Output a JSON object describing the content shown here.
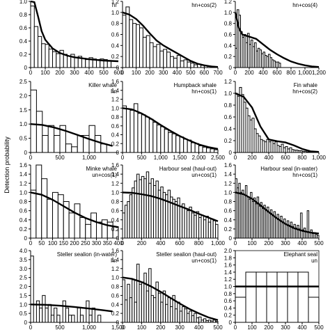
{
  "figure": {
    "ylabel": "Detection probability"
  },
  "chart_data": [
    {
      "type": "bar",
      "name": "",
      "model": "hr",
      "xlim": [
        0,
        600
      ],
      "ylim": [
        0,
        1.0
      ],
      "xticks": [
        0,
        100,
        200,
        300,
        400,
        500,
        600
      ],
      "xtick_labels": [
        "0",
        "100",
        "200",
        "300",
        "400",
        "500",
        "600"
      ],
      "yticks": [
        0,
        0.2,
        0.4,
        0.6,
        0.8,
        1.0
      ],
      "ytick_labels": [
        "0",
        "0.2",
        "0.4",
        "0.6",
        "0.8",
        "1.0"
      ],
      "bin_width": 25,
      "bars": [
        0.93,
        0.62,
        0.47,
        0.36,
        0.35,
        0.28,
        0.24,
        0.21,
        0.26,
        0.2,
        0.17,
        0.2,
        0.15,
        0.17,
        0.14,
        0.12,
        0.15,
        0.13,
        0.12,
        0.13,
        0.12,
        0.1
      ],
      "curve_x": [
        0,
        25,
        50,
        75,
        100,
        150,
        200,
        250,
        300,
        350,
        400,
        450,
        500,
        550,
        600
      ],
      "curve_y": [
        1.0,
        0.99,
        0.78,
        0.55,
        0.42,
        0.29,
        0.22,
        0.18,
        0.155,
        0.14,
        0.125,
        0.115,
        0.105,
        0.1,
        0.095
      ]
    },
    {
      "type": "bar",
      "name": "",
      "model": "hn+cos(2)",
      "xlim": [
        0,
        700
      ],
      "ylim": [
        0,
        1.2
      ],
      "xticks": [
        0,
        100,
        200,
        300,
        400,
        500,
        600,
        700
      ],
      "xtick_labels": [
        "0",
        "100",
        "200",
        "300",
        "400",
        "500",
        "600",
        "700"
      ],
      "yticks": [
        0,
        0.2,
        0.4,
        0.6,
        0.8,
        1.0,
        1.2
      ],
      "ytick_labels": [
        "0",
        "0.2",
        "0.4",
        "0.6",
        "0.8",
        "1.0",
        "1.2"
      ],
      "bin_width": 25,
      "bars": [
        0.95,
        1.1,
        0.87,
        0.8,
        0.78,
        0.72,
        0.55,
        0.58,
        0.45,
        0.38,
        0.42,
        0.3,
        0.33,
        0.28,
        0.2,
        0.17,
        0.22,
        0.12,
        0.14,
        0.1,
        0.08,
        0.05,
        0.06,
        0.04,
        0.03,
        0.03,
        0.02
      ],
      "curve_x": [
        0,
        50,
        100,
        150,
        200,
        250,
        300,
        350,
        400,
        450,
        500,
        550,
        600,
        650,
        700
      ],
      "curve_y": [
        1.0,
        0.96,
        0.88,
        0.76,
        0.62,
        0.49,
        0.4,
        0.33,
        0.26,
        0.19,
        0.12,
        0.07,
        0.04,
        0.02,
        0.01
      ]
    },
    {
      "type": "bar",
      "name": "",
      "model": "hn+cos(4)",
      "xlim": [
        0,
        1200
      ],
      "ylim": [
        0,
        1.2
      ],
      "xticks": [
        0,
        200,
        400,
        600,
        800,
        1000,
        1200
      ],
      "xtick_labels": [
        "0",
        "200",
        "400",
        "600",
        "800",
        "1,000",
        "1,200"
      ],
      "yticks": [
        0,
        0.2,
        0.4,
        0.6,
        0.8,
        1.0,
        1.2
      ],
      "ytick_labels": [
        "0",
        "0.2",
        "0.4",
        "0.6",
        "0.8",
        "1.0",
        "1.2"
      ],
      "bin_width": 25,
      "bars": [
        0.35,
        1.05,
        0.95,
        0.65,
        0.55,
        0.6,
        0.45,
        0.62,
        0.42,
        0.5,
        0.38,
        0.45,
        0.3,
        0.35,
        0.32,
        0.25,
        0.28,
        0.22,
        0.2,
        0.24,
        0.18,
        0.14,
        0.12,
        0.1,
        0.1,
        0.08
      ],
      "curve_x": [
        0,
        50,
        100,
        200,
        300,
        400,
        500,
        600,
        700,
        800,
        900,
        1000,
        1100,
        1200
      ],
      "curve_y": [
        1.0,
        0.72,
        0.6,
        0.56,
        0.52,
        0.42,
        0.32,
        0.24,
        0.17,
        0.11,
        0.07,
        0.04,
        0.02,
        0.01
      ]
    },
    {
      "type": "bar",
      "name": "Killer whale",
      "model": "hn",
      "xlim": [
        0,
        1500
      ],
      "ylim": [
        0,
        2.5
      ],
      "xticks": [
        0,
        500,
        1000
      ],
      "xtick_labels": [
        "0",
        "500",
        "1,000"
      ],
      "yticks": [
        0,
        0.5,
        1.0,
        1.5,
        2.0,
        2.5
      ],
      "ytick_labels": [
        "0",
        "0.5",
        "1.0",
        "1.5",
        "2.0",
        "2.5"
      ],
      "bin_width": 100,
      "bars": [
        2.2,
        1.45,
        0.6,
        0.95,
        0.6,
        0.95,
        0.3,
        0.2,
        0.6,
        0.6,
        0.95,
        0.6,
        0.3,
        0.0,
        0.0
      ],
      "curve_x": [
        0,
        200,
        400,
        600,
        800,
        1000,
        1200,
        1400
      ],
      "curve_y": [
        1.0,
        0.97,
        0.88,
        0.76,
        0.62,
        0.47,
        0.34,
        0.23
      ]
    },
    {
      "type": "bar",
      "name": "Humpback whale",
      "model": "hn+cos(1)",
      "xlim": [
        0,
        2500
      ],
      "ylim": [
        0,
        1.6
      ],
      "xticks": [
        0,
        500,
        1000,
        1500,
        2000,
        2500
      ],
      "xtick_labels": [
        "0",
        "500",
        "1,000",
        "1,500",
        "2,000",
        "2,500"
      ],
      "yticks": [
        0,
        0.2,
        0.4,
        0.6,
        0.8,
        1.0,
        1.2,
        1.4,
        1.6
      ],
      "ytick_labels": [
        "0",
        "0.2",
        "0.4",
        "0.6",
        "0.8",
        "1.0",
        "1.2",
        "1.4",
        "1.6"
      ],
      "bin_width": 100,
      "bars": [
        1.05,
        0.98,
        0.95,
        1.1,
        0.88,
        0.85,
        0.8,
        0.75,
        0.68,
        0.62,
        0.58,
        0.52,
        0.45,
        0.42,
        0.38,
        0.35,
        0.3,
        0.28,
        0.22,
        0.2,
        0.15,
        0.12,
        0.1,
        0.08,
        0.06
      ],
      "curve_x": [
        0,
        250,
        500,
        750,
        1000,
        1250,
        1500,
        1750,
        2000,
        2250,
        2500
      ],
      "curve_y": [
        1.0,
        0.97,
        0.88,
        0.76,
        0.62,
        0.49,
        0.37,
        0.27,
        0.18,
        0.12,
        0.08
      ]
    },
    {
      "type": "bar",
      "name": "Fin whale",
      "model": "hn+cos(2)",
      "xlim": [
        0,
        1000
      ],
      "ylim": [
        0,
        1.2
      ],
      "xticks": [
        0,
        200,
        400,
        600,
        800,
        1000
      ],
      "xtick_labels": [
        "0",
        "200",
        "400",
        "600",
        "800",
        "1,000"
      ],
      "yticks": [
        0,
        0.2,
        0.4,
        0.6,
        0.8,
        1.0,
        1.2
      ],
      "ytick_labels": [
        "0",
        "0.2",
        "0.4",
        "0.6",
        "0.8",
        "1.0",
        "1.2"
      ],
      "bin_width": 25,
      "bars": [
        1.0,
        0.95,
        1.1,
        0.98,
        0.85,
        0.75,
        0.62,
        0.55,
        0.58,
        0.4,
        0.32,
        0.28,
        0.22,
        0.2,
        0.18,
        0.22,
        0.18,
        0.2,
        0.15,
        0.18,
        0.12,
        0.1,
        0.14,
        0.08,
        0.1,
        0.06,
        0.08,
        0.05,
        0.04,
        0.04,
        0.03,
        0.03,
        0.02,
        0.02,
        0.01,
        0.01,
        0.01,
        0.01,
        0.0,
        0.0
      ],
      "curve_x": [
        0,
        100,
        200,
        300,
        400,
        500,
        600,
        700,
        800,
        900,
        1000
      ],
      "curve_y": [
        1.0,
        0.94,
        0.76,
        0.44,
        0.22,
        0.19,
        0.17,
        0.12,
        0.06,
        0.02,
        0.01
      ]
    },
    {
      "type": "bar",
      "name": "Minke whale",
      "model": "un+cos(1)",
      "xlim": [
        0,
        400
      ],
      "ylim": [
        0,
        1.6
      ],
      "xticks": [
        0,
        50,
        100,
        150,
        200,
        250,
        300,
        350,
        400
      ],
      "xtick_labels": [
        "0",
        "50",
        "100",
        "150",
        "200",
        "250",
        "300",
        "350",
        "400"
      ],
      "yticks": [
        0,
        0.2,
        0.4,
        0.6,
        0.8,
        1.0,
        1.2,
        1.4,
        1.6
      ],
      "ytick_labels": [
        "0",
        "0.2",
        "0.4",
        "0.6",
        "0.8",
        "1.0",
        "1.2",
        "1.4",
        "1.6"
      ],
      "bin_width": 25,
      "bars": [
        1.05,
        1.6,
        1.3,
        0.85,
        1.0,
        0.95,
        0.8,
        0.55,
        0.75,
        0.45,
        0.3,
        0.55,
        0.35,
        0.4,
        0.35,
        0.25
      ],
      "curve_x": [
        0,
        50,
        100,
        150,
        200,
        250,
        300,
        350,
        400
      ],
      "curve_y": [
        1.0,
        0.95,
        0.84,
        0.7,
        0.56,
        0.44,
        0.35,
        0.28,
        0.24
      ]
    },
    {
      "type": "bar",
      "name": "Harbour seal (haul-out)",
      "model": "un+cos(1)",
      "xlim": [
        0,
        1000
      ],
      "ylim": [
        0,
        1.6
      ],
      "xticks": [
        0,
        200,
        400,
        600,
        800,
        1000
      ],
      "xtick_labels": [
        "0",
        "200",
        "400",
        "600",
        "800",
        "1,000"
      ],
      "yticks": [
        0,
        0.2,
        0.4,
        0.6,
        0.8,
        1.0,
        1.2,
        1.4,
        1.6
      ],
      "ytick_labels": [
        "0",
        "0.2",
        "0.4",
        "0.6",
        "0.8",
        "1.0",
        "1.2",
        "1.4",
        "1.6"
      ],
      "bin_width": 25,
      "bars": [
        0.55,
        0.72,
        0.8,
        0.95,
        1.1,
        1.25,
        1.4,
        1.28,
        1.35,
        1.3,
        1.45,
        1.2,
        1.3,
        1.15,
        1.25,
        1.05,
        1.12,
        1.0,
        0.95,
        1.05,
        0.9,
        0.85,
        0.8,
        0.88,
        0.7,
        0.75,
        0.65,
        0.6,
        0.68,
        0.55,
        0.5,
        0.58,
        0.45,
        0.5,
        0.4,
        0.48,
        0.35,
        0.42,
        0.38,
        0.3
      ],
      "curve_x": [
        0,
        100,
        200,
        300,
        400,
        500,
        600,
        700,
        800,
        900,
        1000
      ],
      "curve_y": [
        1.0,
        0.99,
        0.96,
        0.92,
        0.86,
        0.78,
        0.7,
        0.62,
        0.53,
        0.45,
        0.37
      ]
    },
    {
      "type": "bar",
      "name": "Harbour seal (in-water)",
      "model": "hn+cos(1)",
      "xlim": [
        0,
        500
      ],
      "ylim": [
        0,
        1.6
      ],
      "xticks": [
        0,
        100,
        200,
        300,
        400,
        500
      ],
      "xtick_labels": [
        "0",
        "100",
        "200",
        "300",
        "400",
        "500"
      ],
      "yticks": [
        0,
        0.2,
        0.4,
        0.6,
        0.8,
        1.0,
        1.2,
        1.4,
        1.6
      ],
      "ytick_labels": [
        "0",
        "0.2",
        "0.4",
        "0.6",
        "0.8",
        "1.0",
        "1.2",
        "1.4",
        "1.6"
      ],
      "bin_width": 10,
      "bars": [
        1.3,
        1.1,
        1.2,
        1.0,
        1.05,
        0.95,
        1.15,
        0.9,
        0.85,
        1.0,
        0.8,
        0.88,
        0.75,
        0.9,
        0.7,
        0.78,
        0.65,
        0.72,
        0.6,
        0.68,
        0.55,
        0.62,
        0.5,
        0.58,
        0.45,
        0.52,
        0.4,
        0.48,
        0.35,
        0.42,
        0.3,
        0.38,
        0.28,
        0.35,
        0.25,
        0.3,
        0.22,
        0.28,
        0.2,
        0.55,
        0.18,
        0.22,
        0.15,
        0.6,
        0.12,
        0.18,
        0.1,
        0.12,
        0.08,
        0.06
      ],
      "curve_x": [
        0,
        50,
        100,
        150,
        200,
        250,
        300,
        350,
        400,
        450,
        500
      ],
      "curve_y": [
        1.0,
        0.96,
        0.86,
        0.72,
        0.57,
        0.43,
        0.31,
        0.22,
        0.16,
        0.12,
        0.1
      ]
    },
    {
      "type": "bar",
      "name": "Steller sealion (in-water)",
      "model": "hn",
      "xlim": [
        0,
        1500
      ],
      "ylim": [
        0,
        4.0
      ],
      "xticks": [
        0,
        500,
        1000,
        1500
      ],
      "xtick_labels": [
        "0",
        "500",
        "1,000",
        "1,500"
      ],
      "yticks": [
        0,
        0.5,
        1.0,
        1.5,
        2.0,
        2.5,
        3.0,
        3.5,
        4.0
      ],
      "ytick_labels": [
        "0",
        "0.5",
        "1.0",
        "1.5",
        "2.0",
        "2.5",
        "3.0",
        "3.5",
        "4.0"
      ],
      "bin_width": 50,
      "bars": [
        3.7,
        0.0,
        1.2,
        0.8,
        1.5,
        0.8,
        1.0,
        0.4,
        0.8,
        0.4,
        0.0,
        1.2,
        0.8,
        0.4,
        0.4,
        0.0,
        0.8,
        0.4,
        0.0,
        1.2,
        0.4,
        0.8,
        0.0,
        0.4,
        0.0
      ],
      "curve_x": [
        0,
        250,
        500,
        750,
        1000,
        1250,
        1400
      ],
      "curve_y": [
        1.0,
        0.98,
        0.93,
        0.86,
        0.77,
        0.67,
        0.61
      ]
    },
    {
      "type": "bar",
      "name": "Steller sealion (haul-out)",
      "model": "un+cos(1)",
      "xlim": [
        0,
        500
      ],
      "ylim": [
        0,
        1.6
      ],
      "xticks": [
        0,
        100,
        200,
        300,
        400,
        500
      ],
      "xtick_labels": [
        "0",
        "100",
        "200",
        "300",
        "400",
        "500"
      ],
      "yticks": [
        0,
        0.2,
        0.4,
        0.6,
        0.8,
        1.0,
        1.2,
        1.4,
        1.6
      ],
      "ytick_labels": [
        "0",
        "0.2",
        "0.4",
        "0.6",
        "0.8",
        "1.0",
        "1.2",
        "1.4",
        "1.6"
      ],
      "bin_width": 12.5,
      "bars": [
        0.95,
        0.5,
        0.85,
        0.55,
        0.95,
        0.45,
        1.3,
        0.85,
        0.9,
        1.1,
        0.7,
        1.2,
        0.6,
        0.55,
        0.9,
        0.65,
        0.45,
        0.7,
        0.4,
        0.55,
        0.35,
        0.6,
        0.3,
        0.45,
        0.25,
        0.35,
        0.3,
        0.2,
        0.25,
        0.15,
        0.2,
        0.1,
        0.12,
        0.05,
        0.08,
        0.04,
        0.05,
        0.03,
        0.05,
        0.02
      ],
      "curve_x": [
        0,
        50,
        100,
        150,
        200,
        250,
        300,
        350,
        400,
        450,
        500
      ],
      "curve_y": [
        1.0,
        0.97,
        0.9,
        0.8,
        0.68,
        0.55,
        0.42,
        0.3,
        0.2,
        0.11,
        0.05
      ]
    },
    {
      "type": "bar",
      "name": "Elephant seal",
      "model": "un",
      "xlim": [
        0,
        500
      ],
      "ylim": [
        0,
        2.0
      ],
      "xticks": [
        0,
        100,
        200,
        300,
        400,
        500
      ],
      "xtick_labels": [
        "0",
        "100",
        "200",
        "300",
        "400",
        "500"
      ],
      "yticks": [
        0,
        0.2,
        0.4,
        0.6,
        0.8,
        1.0,
        1.2,
        1.4,
        1.6,
        1.8,
        2.0
      ],
      "ytick_labels": [
        "0",
        "0.2",
        "0.4",
        "0.6",
        "0.8",
        "1.0",
        "1.2",
        "1.4",
        "1.6",
        "1.8",
        "2.0"
      ],
      "bin_width": 62.5,
      "bars": [
        0.7,
        1.4,
        1.4,
        1.4,
        1.4,
        1.4,
        1.4,
        0.7
      ],
      "curve_x": [
        0,
        500
      ],
      "curve_y": [
        1.0,
        1.0
      ]
    }
  ]
}
